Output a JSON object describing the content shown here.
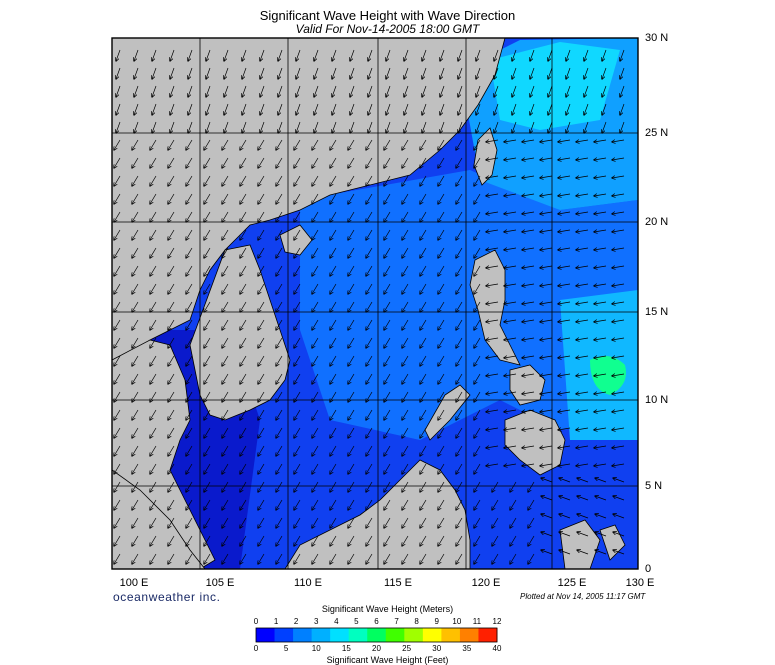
{
  "header": {
    "title": "Significant Wave Height with Wave Direction",
    "subtitle": "Valid For Nov-14-2005 18:00 GMT"
  },
  "axes": {
    "lat_labels": [
      "30 N",
      "25 N",
      "20 N",
      "15 N",
      "10 N",
      "5 N",
      "0"
    ],
    "lon_labels": [
      "100 E",
      "105 E",
      "110 E",
      "115 E",
      "120 E",
      "125 E",
      "130 E"
    ]
  },
  "footer": {
    "brand": "oceanweather inc.",
    "plotted": "Plotted at Nov 14, 2005 11:17 GMT"
  },
  "colorbar": {
    "title": "Significant Wave Height (Meters)",
    "footer": "Significant Wave Height (Feet)",
    "meter_ticks": [
      "0",
      "1",
      "2",
      "3",
      "4",
      "5",
      "6",
      "7",
      "8",
      "9",
      "10",
      "11",
      "12"
    ],
    "feet_ticks": [
      "0",
      "5",
      "10",
      "15",
      "20",
      "25",
      "30",
      "35",
      "40"
    ],
    "colors": [
      "#0000ff",
      "#0040ff",
      "#0080ff",
      "#00b0ff",
      "#00e0ff",
      "#00ffc0",
      "#00ff60",
      "#40ff00",
      "#a0ff00",
      "#ffff00",
      "#ffc000",
      "#ff8000",
      "#ff2000"
    ]
  },
  "map": {
    "land_color": "#c0c0c0",
    "coast_color": "#000000",
    "grid_color": "#000000",
    "sea_colors": {
      "deep": "#0a1acc",
      "low": "#1040f0",
      "mid": "#1070ff",
      "high": "#10c0ff",
      "peak": "#10ff90"
    }
  }
}
